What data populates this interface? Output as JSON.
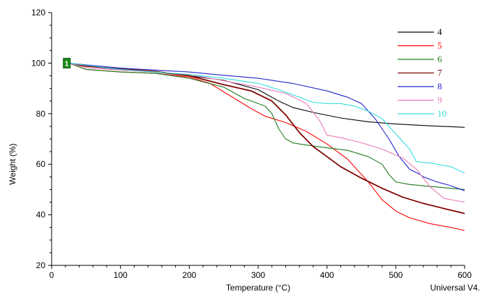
{
  "chart_data": {
    "type": "line",
    "title": "",
    "xlabel": "Temperature (°C)",
    "ylabel": "Weight (%)",
    "xlim": [
      0,
      600
    ],
    "ylim": [
      20,
      120
    ],
    "x_ticks": [
      0,
      100,
      200,
      300,
      400,
      500,
      600
    ],
    "y_ticks": [
      20,
      40,
      60,
      80,
      100,
      120
    ],
    "grid": false,
    "legend_position": "top-right",
    "corner_text": "Universal V4.",
    "start_marker": "1",
    "series": [
      {
        "name": "4",
        "color": "#000000",
        "x": [
          25,
          50,
          100,
          150,
          200,
          250,
          300,
          330,
          350,
          380,
          420,
          460,
          500,
          550,
          600
        ],
        "y": [
          100,
          98.8,
          97.5,
          96.5,
          95,
          93.2,
          89.5,
          85,
          82.5,
          80.5,
          78.3,
          76.8,
          75.9,
          75.2,
          74.6
        ]
      },
      {
        "name": "5",
        "color": "#ff0000",
        "x": [
          25,
          50,
          100,
          150,
          200,
          230,
          260,
          290,
          310,
          340,
          370,
          400,
          430,
          460,
          480,
          500,
          520,
          550,
          580,
          600
        ],
        "y": [
          100,
          97.5,
          96.5,
          96,
          94.5,
          92,
          87,
          82,
          79,
          76.5,
          73,
          68,
          62,
          53,
          46,
          41.5,
          38.8,
          36.5,
          35,
          33.8
        ]
      },
      {
        "name": "6",
        "color": "#1a7a1a",
        "x": [
          25,
          50,
          100,
          150,
          200,
          250,
          280,
          310,
          320,
          330,
          340,
          350,
          360,
          380,
          400,
          430,
          460,
          480,
          490,
          500,
          520,
          560,
          600
        ],
        "y": [
          100,
          97.5,
          96.5,
          96,
          94,
          90.5,
          86,
          83,
          80,
          74,
          70,
          68.5,
          68,
          67.2,
          66.5,
          65.5,
          63,
          60,
          56,
          53,
          52,
          51,
          50
        ]
      },
      {
        "name": "7",
        "color": "#800000",
        "x": [
          25,
          50,
          100,
          150,
          200,
          250,
          290,
          320,
          340,
          360,
          380,
          400,
          420,
          450,
          480,
          510,
          540,
          570,
          600
        ],
        "y": [
          100,
          98.8,
          97.7,
          96.7,
          95,
          91.5,
          89,
          85,
          79.5,
          72.5,
          67,
          63,
          59,
          54.5,
          50.5,
          47,
          44.5,
          42.5,
          40.5
        ]
      },
      {
        "name": "8",
        "color": "#2020cc",
        "x": [
          25,
          100,
          200,
          250,
          300,
          350,
          400,
          430,
          450,
          470,
          490,
          505,
          520,
          535,
          540,
          560,
          580,
          600
        ],
        "y": [
          100,
          98,
          96.5,
          95.2,
          94,
          92,
          89,
          86.5,
          84,
          78,
          70,
          63,
          58,
          56,
          55,
          53,
          51.5,
          49.5
        ]
      },
      {
        "name": "9",
        "color": "#e87ab8",
        "x": [
          25,
          50,
          100,
          150,
          200,
          250,
          300,
          340,
          370,
          390,
          400,
          420,
          450,
          480,
          510,
          530,
          550,
          570,
          600
        ],
        "y": [
          100,
          98.2,
          97.2,
          96.5,
          95.5,
          93,
          90.5,
          88,
          84,
          77,
          71.5,
          70.5,
          68.5,
          66,
          62.5,
          58,
          51,
          46.5,
          45
        ]
      },
      {
        "name": "10",
        "color": "#33dddd",
        "x": [
          25,
          100,
          150,
          200,
          250,
          300,
          330,
          360,
          380,
          400,
          420,
          440,
          460,
          480,
          500,
          520,
          530,
          550,
          580,
          600
        ],
        "y": [
          100,
          97.5,
          96.5,
          95.5,
          94,
          92,
          89.5,
          86.5,
          84.5,
          84,
          84,
          83,
          81,
          78,
          72,
          66,
          61,
          60.5,
          59,
          56.5
        ]
      }
    ]
  }
}
